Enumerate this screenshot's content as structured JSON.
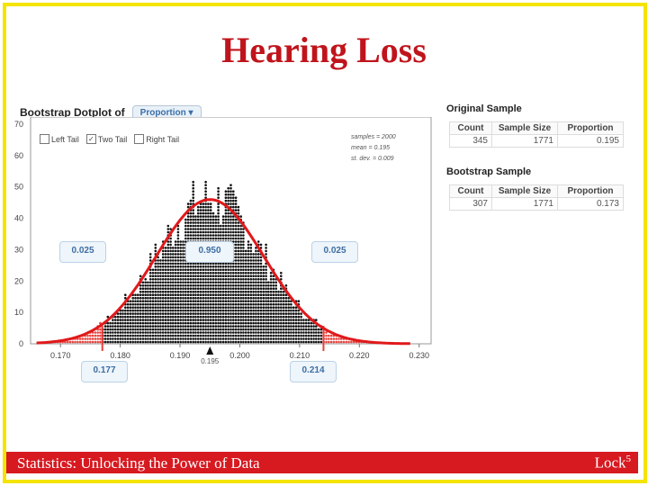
{
  "title": "Hearing Loss",
  "footer": {
    "left": "Statistics: Unlocking the Power of Data",
    "right": "Lock",
    "right_sup": "5"
  },
  "dotplot": {
    "heading": "Bootstrap Dotplot of",
    "dropdown": "Proportion ▾",
    "checkboxes": [
      {
        "label": "Left Tail",
        "checked": false
      },
      {
        "label": "Two Tail",
        "checked": true
      },
      {
        "label": "Right Tail",
        "checked": false
      }
    ],
    "stats": {
      "samples": "samples = 2000",
      "mean": "mean = 0.195",
      "sd": "st. dev. = 0.009"
    },
    "tail_boxes": {
      "left": "0.025",
      "middle": "0.950",
      "right": "0.025"
    },
    "cutoffs": {
      "lower": "0.177",
      "upper": "0.214"
    },
    "center_label": "0.195"
  },
  "original_sample": {
    "title": "Original Sample",
    "headers": [
      "Count",
      "Sample Size",
      "Proportion"
    ],
    "row": [
      "345",
      "1771",
      "0.195"
    ]
  },
  "bootstrap_sample": {
    "title": "Bootstrap Sample",
    "headers": [
      "Count",
      "Sample Size",
      "Proportion"
    ],
    "row": [
      "307",
      "1771",
      "0.173"
    ]
  },
  "chart_data": {
    "type": "scatter",
    "xlim": [
      0.165,
      0.232
    ],
    "ylim": [
      0,
      70
    ],
    "x_ticks": [
      0.17,
      0.18,
      0.19,
      0.2,
      0.21,
      0.22,
      0.23
    ],
    "x_tick_labels": [
      "0.170",
      "0.180",
      "0.190",
      "0.200",
      "0.210",
      "0.220",
      "0.230"
    ],
    "y_ticks": [
      0,
      10,
      20,
      30,
      40,
      50,
      60,
      70
    ],
    "y_tick_labels": [
      "0",
      "10",
      "20",
      "30",
      "40",
      "50",
      "60",
      "70"
    ],
    "normal_curve": {
      "mean": 0.195,
      "sd": 0.009,
      "peak": 46
    },
    "cutoff_lower": 0.177,
    "cutoff_upper": 0.214,
    "colors": {
      "tail": "#e8413c",
      "body": "#111111",
      "curve": "#e0191b"
    }
  }
}
